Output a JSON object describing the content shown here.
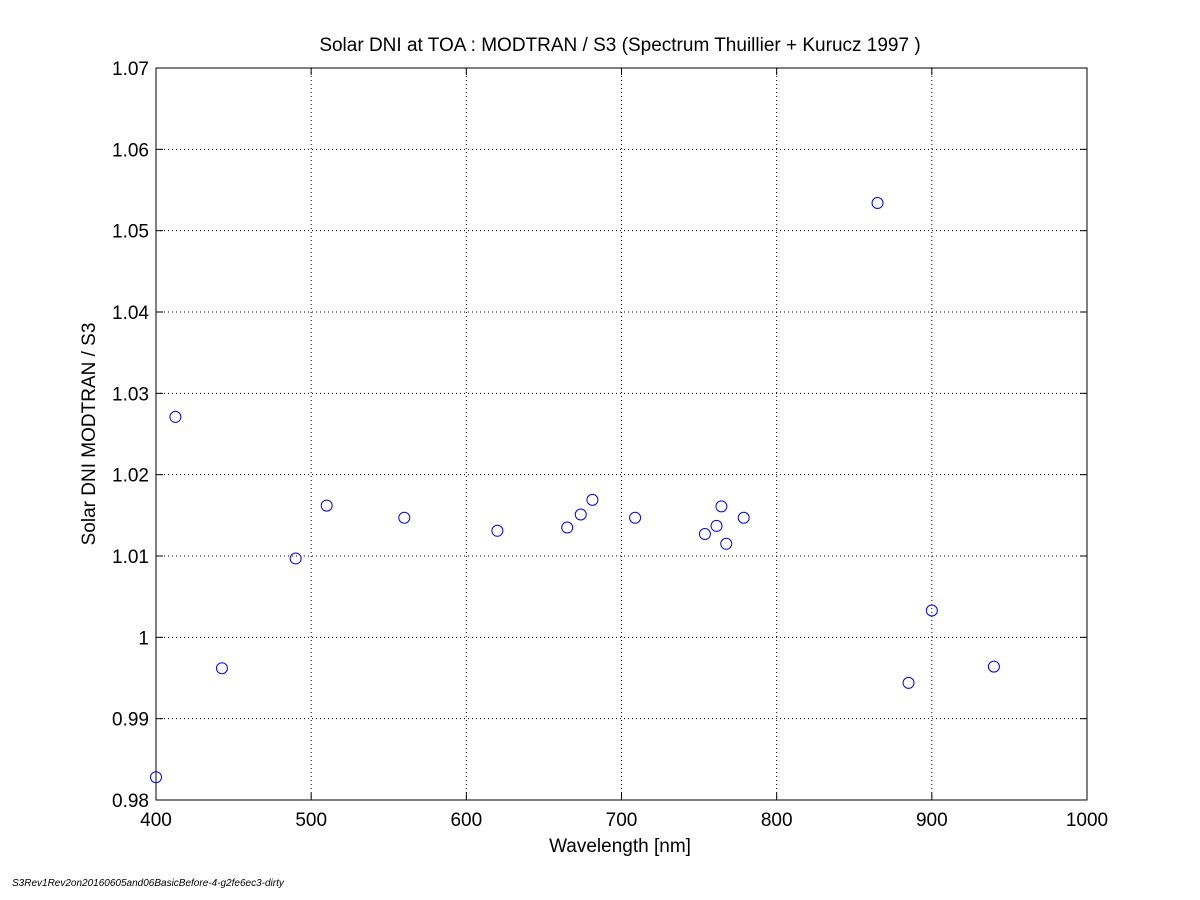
{
  "footer_text": "S3Rev1Rev2on20160605and06BasicBefore-4-g2fe6ec3-dirty",
  "chart_data": {
    "type": "scatter",
    "title": "Solar DNI at TOA : MODTRAN / S3 (Spectrum Thuillier + Kurucz 1997 )",
    "xlabel": "Wavelength [nm]",
    "ylabel": "Solar DNI MODTRAN / S3",
    "xlim": [
      400,
      1000
    ],
    "ylim": [
      0.98,
      1.07
    ],
    "xticks": [
      400,
      500,
      600,
      700,
      800,
      900,
      1000
    ],
    "xtick_labels": [
      "400",
      "500",
      "600",
      "700",
      "800",
      "900",
      "1000"
    ],
    "yticks": [
      0.98,
      0.99,
      1.0,
      1.01,
      1.02,
      1.03,
      1.04,
      1.05,
      1.06,
      1.07
    ],
    "ytick_labels": [
      "0.98",
      "0.99",
      "1",
      "1.01",
      "1.02",
      "1.03",
      "1.04",
      "1.05",
      "1.06",
      "1.07"
    ],
    "grid": true,
    "marker": "circle-open",
    "color": "#0000ff",
    "points": [
      {
        "x": 400,
        "y": 0.9828
      },
      {
        "x": 412.5,
        "y": 1.0271
      },
      {
        "x": 442.5,
        "y": 0.9962
      },
      {
        "x": 490,
        "y": 1.0097
      },
      {
        "x": 510,
        "y": 1.0162
      },
      {
        "x": 560,
        "y": 1.0147
      },
      {
        "x": 620,
        "y": 1.0131
      },
      {
        "x": 665,
        "y": 1.0135
      },
      {
        "x": 673.75,
        "y": 1.0151
      },
      {
        "x": 681.25,
        "y": 1.0169
      },
      {
        "x": 708.75,
        "y": 1.0147
      },
      {
        "x": 753.75,
        "y": 1.0127
      },
      {
        "x": 761.25,
        "y": 1.0137
      },
      {
        "x": 764.375,
        "y": 1.0161
      },
      {
        "x": 767.5,
        "y": 1.0115
      },
      {
        "x": 778.75,
        "y": 1.0147
      },
      {
        "x": 865,
        "y": 1.0534
      },
      {
        "x": 885,
        "y": 0.9944
      },
      {
        "x": 900,
        "y": 1.0033
      },
      {
        "x": 940,
        "y": 0.9964
      }
    ]
  }
}
